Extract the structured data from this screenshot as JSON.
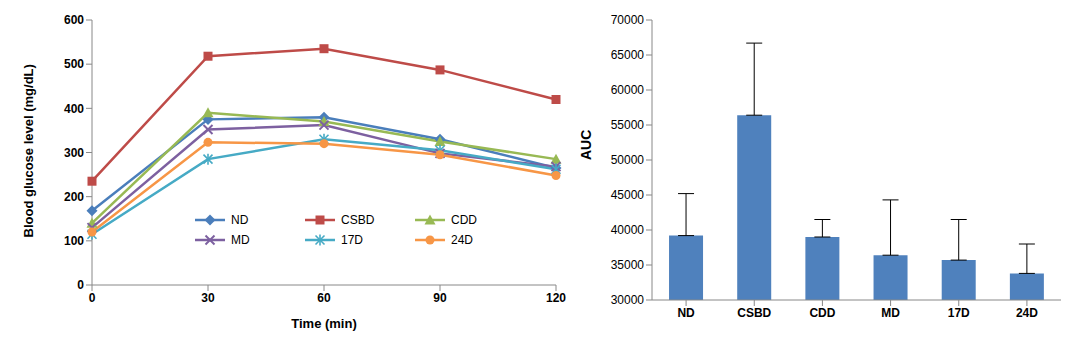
{
  "chart_data": [
    {
      "type": "line",
      "x_label": "Time (min)",
      "y_label": "Blood glucose level (mg/dL)",
      "categories": [
        "0",
        "30",
        "60",
        "90",
        "120"
      ],
      "ylim": [
        0,
        600
      ],
      "yticks": [
        0,
        100,
        200,
        300,
        400,
        500,
        600
      ],
      "grid": false,
      "legend": "bottom",
      "series": [
        {
          "name": "ND",
          "color": "#4a7ebb",
          "marker": "diamond",
          "values": [
            168,
            375,
            380,
            330,
            265
          ]
        },
        {
          "name": "CSBD",
          "color": "#be4b48",
          "marker": "square",
          "values": [
            235,
            518,
            535,
            487,
            420
          ]
        },
        {
          "name": "CDD",
          "color": "#98b954",
          "marker": "triangle",
          "values": [
            140,
            390,
            370,
            325,
            285
          ]
        },
        {
          "name": "MD",
          "color": "#7d60a0",
          "marker": "x",
          "values": [
            130,
            352,
            362,
            298,
            268
          ]
        },
        {
          "name": "17D",
          "color": "#46aac5",
          "marker": "star",
          "values": [
            115,
            285,
            330,
            305,
            262
          ]
        },
        {
          "name": "24D",
          "color": "#f79646",
          "marker": "circle",
          "values": [
            120,
            323,
            320,
            295,
            248
          ]
        }
      ]
    },
    {
      "type": "bar",
      "y_label": "AUC",
      "categories": [
        "ND",
        "CSBD",
        "CDD",
        "MD",
        "17D",
        "24D"
      ],
      "values": [
        39200,
        56400,
        39000,
        36400,
        35700,
        33800
      ],
      "errors": [
        6000,
        10300,
        2500,
        7900,
        5800,
        4200
      ],
      "color": "#4f81bd",
      "ylim": [
        30000,
        70000
      ],
      "yticks": [
        30000,
        35000,
        40000,
        45000,
        50000,
        55000,
        60000,
        65000,
        70000
      ],
      "grid": false
    }
  ]
}
